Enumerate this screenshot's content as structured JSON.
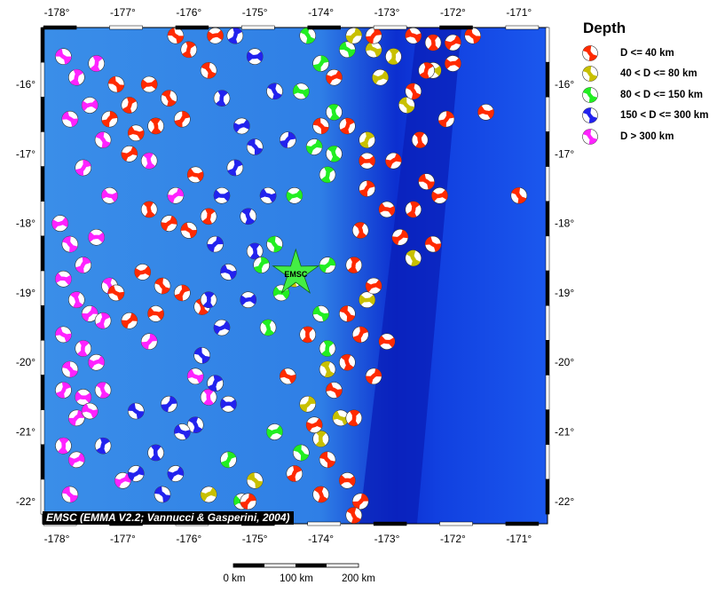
{
  "legend": {
    "title": "Depth",
    "items": [
      {
        "label": "D <= 40 km",
        "color": "#ff2a00"
      },
      {
        "label": "40 < D <= 80 km",
        "color": "#c8c000"
      },
      {
        "label": "80 < D <= 150 km",
        "color": "#22ee22"
      },
      {
        "label": "150 < D <= 300 km",
        "color": "#2222ee"
      },
      {
        "label": "D > 300 km",
        "color": "#ff22ff"
      }
    ]
  },
  "credit": "EMSC (EMMA V2.2; Vannucci & Gasperini, 2004)",
  "marker": {
    "label": "EMSC",
    "lon": -174.38,
    "lat": -18.72,
    "color": "#44ee44"
  },
  "axes": {
    "lon_ticks": [
      "-178°",
      "-177°",
      "-176°",
      "-175°",
      "-174°",
      "-173°",
      "-172°",
      "-171°"
    ],
    "lat_ticks": [
      "-16°",
      "-17°",
      "-18°",
      "-19°",
      "-20°",
      "-21°",
      "-22°"
    ]
  },
  "scale_bar": {
    "labels": [
      "0 km",
      "100 km",
      "200 km"
    ]
  },
  "events": [
    [
      -177.9,
      -15.6,
      4
    ],
    [
      -177.7,
      -15.9,
      4
    ],
    [
      -177.5,
      -16.3,
      4
    ],
    [
      -177.3,
      -16.8,
      4
    ],
    [
      -177.6,
      -17.2,
      4
    ],
    [
      -177.2,
      -17.6,
      4
    ],
    [
      -176.6,
      -17.1,
      4
    ],
    [
      -176.2,
      -17.6,
      4
    ],
    [
      -177.8,
      -16.5,
      4
    ],
    [
      -177.4,
      -15.7,
      4
    ],
    [
      -177.95,
      -18.0,
      4
    ],
    [
      -177.8,
      -18.3,
      4
    ],
    [
      -177.6,
      -18.6,
      4
    ],
    [
      -177.9,
      -18.8,
      4
    ],
    [
      -177.7,
      -19.1,
      4
    ],
    [
      -177.5,
      -19.3,
      4
    ],
    [
      -177.9,
      -19.6,
      4
    ],
    [
      -177.6,
      -19.8,
      4
    ],
    [
      -177.4,
      -20.0,
      4
    ],
    [
      -177.8,
      -20.1,
      4
    ],
    [
      -177.9,
      -20.4,
      4
    ],
    [
      -177.6,
      -20.5,
      4
    ],
    [
      -177.3,
      -20.4,
      4
    ],
    [
      -177.7,
      -20.8,
      4
    ],
    [
      -177.5,
      -20.7,
      4
    ],
    [
      -177.9,
      -21.2,
      4
    ],
    [
      -177.7,
      -21.4,
      4
    ],
    [
      -177.8,
      -21.9,
      4
    ],
    [
      -177.3,
      -19.4,
      4
    ],
    [
      -177.4,
      -18.2,
      4
    ],
    [
      -177.2,
      -18.9,
      4
    ],
    [
      -176.6,
      -19.7,
      4
    ],
    [
      -175.9,
      -20.2,
      4
    ],
    [
      -175.7,
      -20.5,
      4
    ],
    [
      -177.0,
      -21.7,
      4
    ],
    [
      -177.1,
      -16.0,
      0
    ],
    [
      -176.9,
      -16.3,
      0
    ],
    [
      -176.6,
      -16.0,
      0
    ],
    [
      -176.3,
      -16.2,
      0
    ],
    [
      -177.2,
      -16.5,
      0
    ],
    [
      -176.8,
      -16.7,
      0
    ],
    [
      -176.5,
      -16.6,
      0
    ],
    [
      -176.9,
      -17.0,
      0
    ],
    [
      -176.2,
      -15.3,
      0
    ],
    [
      -176.0,
      -15.5,
      0
    ],
    [
      -175.6,
      -15.3,
      0
    ],
    [
      -175.7,
      -15.8,
      0
    ],
    [
      -176.1,
      -16.5,
      0
    ],
    [
      -175.9,
      -17.3,
      0
    ],
    [
      -176.6,
      -17.8,
      0
    ],
    [
      -176.3,
      -18.0,
      0
    ],
    [
      -176.0,
      -18.1,
      0
    ],
    [
      -175.7,
      -17.9,
      0
    ],
    [
      -176.7,
      -18.7,
      0
    ],
    [
      -176.4,
      -18.9,
      0
    ],
    [
      -176.1,
      -19.0,
      0
    ],
    [
      -176.5,
      -19.3,
      0
    ],
    [
      -175.8,
      -19.2,
      0
    ],
    [
      -176.9,
      -19.4,
      0
    ],
    [
      -177.1,
      -19.0,
      0
    ],
    [
      -175.5,
      -16.2,
      3
    ],
    [
      -175.2,
      -16.6,
      3
    ],
    [
      -175.0,
      -16.9,
      3
    ],
    [
      -175.3,
      -17.2,
      3
    ],
    [
      -175.5,
      -17.6,
      3
    ],
    [
      -175.1,
      -17.9,
      3
    ],
    [
      -175.6,
      -18.3,
      3
    ],
    [
      -175.4,
      -18.7,
      3
    ],
    [
      -175.7,
      -19.1,
      3
    ],
    [
      -175.5,
      -19.5,
      3
    ],
    [
      -175.8,
      -19.9,
      3
    ],
    [
      -175.6,
      -20.3,
      3
    ],
    [
      -175.4,
      -20.6,
      3
    ],
    [
      -175.9,
      -20.9,
      3
    ],
    [
      -176.3,
      -20.6,
      3
    ],
    [
      -176.1,
      -21.0,
      3
    ],
    [
      -176.5,
      -21.3,
      3
    ],
    [
      -176.2,
      -21.6,
      3
    ],
    [
      -176.4,
      -21.9,
      3
    ],
    [
      -175.3,
      -15.3,
      3
    ],
    [
      -175.0,
      -15.6,
      3
    ],
    [
      -174.7,
      -16.1,
      3
    ],
    [
      -174.5,
      -16.8,
      3
    ],
    [
      -174.8,
      -17.6,
      3
    ],
    [
      -175.0,
      -18.4,
      3
    ],
    [
      -176.8,
      -21.6,
      3
    ],
    [
      -176.8,
      -20.7,
      3
    ],
    [
      -177.3,
      -21.2,
      3
    ],
    [
      -175.1,
      -19.1,
      3
    ],
    [
      -174.2,
      -15.3,
      2
    ],
    [
      -174.0,
      -15.7,
      2
    ],
    [
      -174.3,
      -16.1,
      2
    ],
    [
      -173.8,
      -16.4,
      2
    ],
    [
      -174.1,
      -16.9,
      2
    ],
    [
      -173.6,
      -15.5,
      2
    ],
    [
      -173.9,
      -17.3,
      2
    ],
    [
      -174.4,
      -17.6,
      2
    ],
    [
      -174.7,
      -18.3,
      2
    ],
    [
      -174.9,
      -18.6,
      2
    ],
    [
      -174.6,
      -19.0,
      2
    ],
    [
      -174.8,
      -19.5,
      2
    ],
    [
      -173.9,
      -18.6,
      2
    ],
    [
      -174.0,
      -19.3,
      2
    ],
    [
      -173.9,
      -19.8,
      2
    ],
    [
      -174.7,
      -21.0,
      2
    ],
    [
      -174.3,
      -21.3,
      2
    ],
    [
      -175.4,
      -21.4,
      2
    ],
    [
      -175.2,
      -22.0,
      2
    ],
    [
      -173.8,
      -17.0,
      2
    ],
    [
      -173.5,
      -15.3,
      1
    ],
    [
      -173.2,
      -15.5,
      1
    ],
    [
      -172.9,
      -15.6,
      1
    ],
    [
      -173.1,
      -15.9,
      1
    ],
    [
      -172.7,
      -16.3,
      1
    ],
    [
      -173.3,
      -16.8,
      1
    ],
    [
      -172.3,
      -15.8,
      1
    ],
    [
      -173.9,
      -20.1,
      1
    ],
    [
      -174.2,
      -20.6,
      1
    ],
    [
      -173.7,
      -20.8,
      1
    ],
    [
      -174.0,
      -21.1,
      1
    ],
    [
      -175.7,
      -21.9,
      1
    ],
    [
      -175.0,
      -21.7,
      1
    ],
    [
      -174.4,
      -18.8,
      1
    ],
    [
      -173.3,
      -19.1,
      1
    ],
    [
      -172.6,
      -18.5,
      1
    ],
    [
      -173.2,
      -15.3,
      0
    ],
    [
      -172.6,
      -15.3,
      0
    ],
    [
      -172.3,
      -15.4,
      0
    ],
    [
      -172.0,
      -15.4,
      0
    ],
    [
      -171.7,
      -15.3,
      0
    ],
    [
      -172.4,
      -15.8,
      0
    ],
    [
      -172.0,
      -15.7,
      0
    ],
    [
      -172.6,
      -16.1,
      0
    ],
    [
      -172.1,
      -16.5,
      0
    ],
    [
      -171.5,
      -16.4,
      0
    ],
    [
      -172.5,
      -16.8,
      0
    ],
    [
      -172.9,
      -17.1,
      0
    ],
    [
      -172.4,
      -17.4,
      0
    ],
    [
      -172.6,
      -17.8,
      0
    ],
    [
      -172.2,
      -17.6,
      0
    ],
    [
      -171.0,
      -17.6,
      0
    ],
    [
      -173.3,
      -17.5,
      0
    ],
    [
      -173.0,
      -17.8,
      0
    ],
    [
      -173.4,
      -18.1,
      0
    ],
    [
      -172.8,
      -18.2,
      0
    ],
    [
      -172.3,
      -18.3,
      0
    ],
    [
      -173.5,
      -18.6,
      0
    ],
    [
      -173.2,
      -18.9,
      0
    ],
    [
      -173.6,
      -19.3,
      0
    ],
    [
      -173.4,
      -19.6,
      0
    ],
    [
      -173.0,
      -19.7,
      0
    ],
    [
      -173.6,
      -20.0,
      0
    ],
    [
      -173.2,
      -20.2,
      0
    ],
    [
      -173.8,
      -20.4,
      0
    ],
    [
      -173.5,
      -20.8,
      0
    ],
    [
      -174.1,
      -20.9,
      0
    ],
    [
      -173.9,
      -21.4,
      0
    ],
    [
      -174.4,
      -21.6,
      0
    ],
    [
      -173.6,
      -21.7,
      0
    ],
    [
      -174.0,
      -21.9,
      0
    ],
    [
      -173.4,
      -22.0,
      0
    ],
    [
      -174.5,
      -20.2,
      0
    ],
    [
      -174.2,
      -19.6,
      0
    ],
    [
      -173.8,
      -15.9,
      0
    ],
    [
      -174.0,
      -16.6,
      0
    ],
    [
      -173.6,
      -16.6,
      0
    ],
    [
      -173.3,
      -17.1,
      0
    ],
    [
      -173.5,
      -22.2,
      0
    ],
    [
      -175.1,
      -22.0,
      0
    ]
  ]
}
